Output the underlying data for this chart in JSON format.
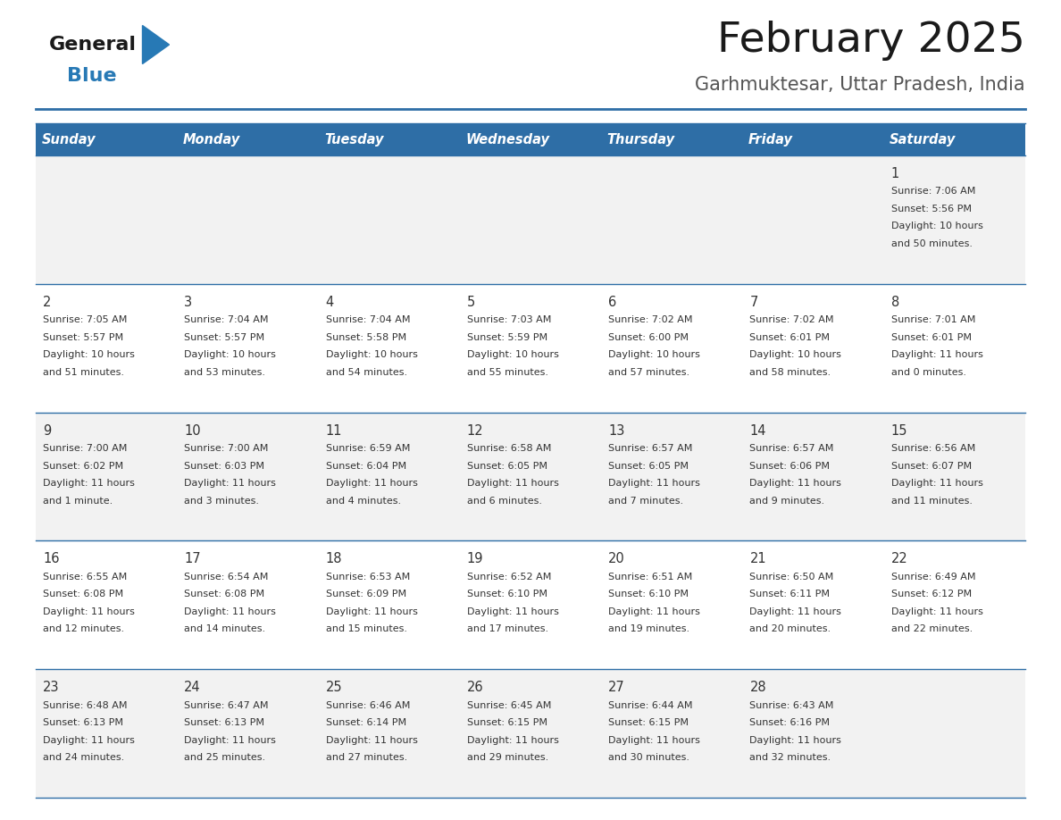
{
  "title": "February 2025",
  "subtitle": "Garhmuktesar, Uttar Pradesh, India",
  "header_color": "#2E6EA6",
  "header_text_color": "#FFFFFF",
  "background_color": "#FFFFFF",
  "cell_bg_odd": "#F2F2F2",
  "cell_bg_even": "#FFFFFF",
  "day_headers": [
    "Sunday",
    "Monday",
    "Tuesday",
    "Wednesday",
    "Thursday",
    "Friday",
    "Saturday"
  ],
  "days": [
    {
      "day": 1,
      "col": 6,
      "row": 0,
      "sunrise": "7:06 AM",
      "sunset": "5:56 PM",
      "daylight_line1": "Daylight: 10 hours",
      "daylight_line2": "and 50 minutes."
    },
    {
      "day": 2,
      "col": 0,
      "row": 1,
      "sunrise": "7:05 AM",
      "sunset": "5:57 PM",
      "daylight_line1": "Daylight: 10 hours",
      "daylight_line2": "and 51 minutes."
    },
    {
      "day": 3,
      "col": 1,
      "row": 1,
      "sunrise": "7:04 AM",
      "sunset": "5:57 PM",
      "daylight_line1": "Daylight: 10 hours",
      "daylight_line2": "and 53 minutes."
    },
    {
      "day": 4,
      "col": 2,
      "row": 1,
      "sunrise": "7:04 AM",
      "sunset": "5:58 PM",
      "daylight_line1": "Daylight: 10 hours",
      "daylight_line2": "and 54 minutes."
    },
    {
      "day": 5,
      "col": 3,
      "row": 1,
      "sunrise": "7:03 AM",
      "sunset": "5:59 PM",
      "daylight_line1": "Daylight: 10 hours",
      "daylight_line2": "and 55 minutes."
    },
    {
      "day": 6,
      "col": 4,
      "row": 1,
      "sunrise": "7:02 AM",
      "sunset": "6:00 PM",
      "daylight_line1": "Daylight: 10 hours",
      "daylight_line2": "and 57 minutes."
    },
    {
      "day": 7,
      "col": 5,
      "row": 1,
      "sunrise": "7:02 AM",
      "sunset": "6:01 PM",
      "daylight_line1": "Daylight: 10 hours",
      "daylight_line2": "and 58 minutes."
    },
    {
      "day": 8,
      "col": 6,
      "row": 1,
      "sunrise": "7:01 AM",
      "sunset": "6:01 PM",
      "daylight_line1": "Daylight: 11 hours",
      "daylight_line2": "and 0 minutes."
    },
    {
      "day": 9,
      "col": 0,
      "row": 2,
      "sunrise": "7:00 AM",
      "sunset": "6:02 PM",
      "daylight_line1": "Daylight: 11 hours",
      "daylight_line2": "and 1 minute."
    },
    {
      "day": 10,
      "col": 1,
      "row": 2,
      "sunrise": "7:00 AM",
      "sunset": "6:03 PM",
      "daylight_line1": "Daylight: 11 hours",
      "daylight_line2": "and 3 minutes."
    },
    {
      "day": 11,
      "col": 2,
      "row": 2,
      "sunrise": "6:59 AM",
      "sunset": "6:04 PM",
      "daylight_line1": "Daylight: 11 hours",
      "daylight_line2": "and 4 minutes."
    },
    {
      "day": 12,
      "col": 3,
      "row": 2,
      "sunrise": "6:58 AM",
      "sunset": "6:05 PM",
      "daylight_line1": "Daylight: 11 hours",
      "daylight_line2": "and 6 minutes."
    },
    {
      "day": 13,
      "col": 4,
      "row": 2,
      "sunrise": "6:57 AM",
      "sunset": "6:05 PM",
      "daylight_line1": "Daylight: 11 hours",
      "daylight_line2": "and 7 minutes."
    },
    {
      "day": 14,
      "col": 5,
      "row": 2,
      "sunrise": "6:57 AM",
      "sunset": "6:06 PM",
      "daylight_line1": "Daylight: 11 hours",
      "daylight_line2": "and 9 minutes."
    },
    {
      "day": 15,
      "col": 6,
      "row": 2,
      "sunrise": "6:56 AM",
      "sunset": "6:07 PM",
      "daylight_line1": "Daylight: 11 hours",
      "daylight_line2": "and 11 minutes."
    },
    {
      "day": 16,
      "col": 0,
      "row": 3,
      "sunrise": "6:55 AM",
      "sunset": "6:08 PM",
      "daylight_line1": "Daylight: 11 hours",
      "daylight_line2": "and 12 minutes."
    },
    {
      "day": 17,
      "col": 1,
      "row": 3,
      "sunrise": "6:54 AM",
      "sunset": "6:08 PM",
      "daylight_line1": "Daylight: 11 hours",
      "daylight_line2": "and 14 minutes."
    },
    {
      "day": 18,
      "col": 2,
      "row": 3,
      "sunrise": "6:53 AM",
      "sunset": "6:09 PM",
      "daylight_line1": "Daylight: 11 hours",
      "daylight_line2": "and 15 minutes."
    },
    {
      "day": 19,
      "col": 3,
      "row": 3,
      "sunrise": "6:52 AM",
      "sunset": "6:10 PM",
      "daylight_line1": "Daylight: 11 hours",
      "daylight_line2": "and 17 minutes."
    },
    {
      "day": 20,
      "col": 4,
      "row": 3,
      "sunrise": "6:51 AM",
      "sunset": "6:10 PM",
      "daylight_line1": "Daylight: 11 hours",
      "daylight_line2": "and 19 minutes."
    },
    {
      "day": 21,
      "col": 5,
      "row": 3,
      "sunrise": "6:50 AM",
      "sunset": "6:11 PM",
      "daylight_line1": "Daylight: 11 hours",
      "daylight_line2": "and 20 minutes."
    },
    {
      "day": 22,
      "col": 6,
      "row": 3,
      "sunrise": "6:49 AM",
      "sunset": "6:12 PM",
      "daylight_line1": "Daylight: 11 hours",
      "daylight_line2": "and 22 minutes."
    },
    {
      "day": 23,
      "col": 0,
      "row": 4,
      "sunrise": "6:48 AM",
      "sunset": "6:13 PM",
      "daylight_line1": "Daylight: 11 hours",
      "daylight_line2": "and 24 minutes."
    },
    {
      "day": 24,
      "col": 1,
      "row": 4,
      "sunrise": "6:47 AM",
      "sunset": "6:13 PM",
      "daylight_line1": "Daylight: 11 hours",
      "daylight_line2": "and 25 minutes."
    },
    {
      "day": 25,
      "col": 2,
      "row": 4,
      "sunrise": "6:46 AM",
      "sunset": "6:14 PM",
      "daylight_line1": "Daylight: 11 hours",
      "daylight_line2": "and 27 minutes."
    },
    {
      "day": 26,
      "col": 3,
      "row": 4,
      "sunrise": "6:45 AM",
      "sunset": "6:15 PM",
      "daylight_line1": "Daylight: 11 hours",
      "daylight_line2": "and 29 minutes."
    },
    {
      "day": 27,
      "col": 4,
      "row": 4,
      "sunrise": "6:44 AM",
      "sunset": "6:15 PM",
      "daylight_line1": "Daylight: 11 hours",
      "daylight_line2": "and 30 minutes."
    },
    {
      "day": 28,
      "col": 5,
      "row": 4,
      "sunrise": "6:43 AM",
      "sunset": "6:16 PM",
      "daylight_line1": "Daylight: 11 hours",
      "daylight_line2": "and 32 minutes."
    }
  ],
  "num_rows": 5,
  "logo_general_color": "#1a1a1a",
  "logo_blue_color": "#2779B5",
  "divider_color": "#2E6EA6",
  "text_color": "#333333",
  "day_num_color": "#333333"
}
